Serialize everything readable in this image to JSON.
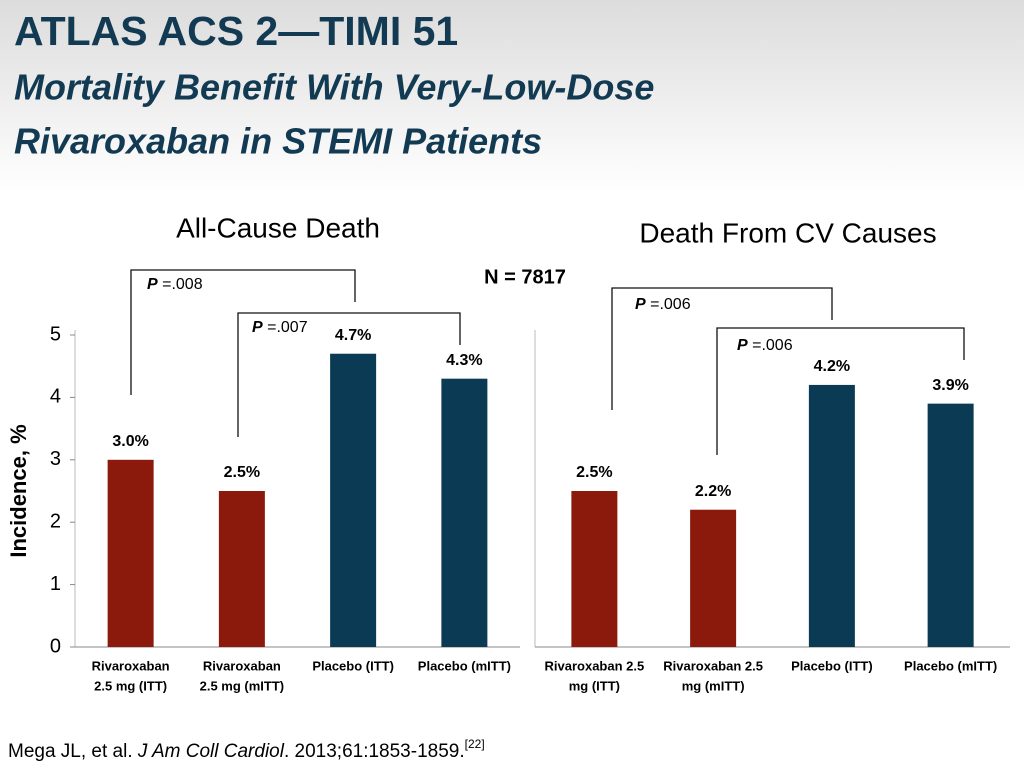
{
  "header": {
    "title": "ATLAS ACS 2—TIMI 51",
    "subtitle": [
      "Mortality Benefit With Very-Low-Dose",
      "Rivaroxaban in STEMI Patients"
    ]
  },
  "annotation": "N = 7817",
  "chart_data": [
    {
      "type": "bar",
      "title": "All-Cause Death",
      "ylabel": "Incidence, %",
      "categories": [
        [
          "Rivaroxaban",
          "2.5 mg (ITT)"
        ],
        [
          "Rivaroxaban",
          "2.5 mg (mITT)"
        ],
        [
          "Placebo (ITT)"
        ],
        [
          "Placebo (mITT)"
        ]
      ],
      "values": [
        3.0,
        2.5,
        4.7,
        4.3
      ],
      "value_labels": [
        "3.0%",
        "2.5%",
        "4.7%",
        "4.3%"
      ],
      "colors": [
        "#8c1a0c",
        "#8c1a0c",
        "#0b3a55",
        "#0b3a55"
      ],
      "ylim": [
        0,
        5
      ],
      "yticks": [
        0,
        1,
        2,
        3,
        4,
        5
      ],
      "brackets": [
        {
          "italic": "P",
          "text": " =.008"
        },
        {
          "italic": "P",
          "text": " =.007"
        }
      ]
    },
    {
      "type": "bar",
      "title": "Death From CV Causes",
      "categories": [
        [
          "Rivaroxaban 2.5",
          "mg (ITT)"
        ],
        [
          "Rivaroxaban 2.5",
          "mg (mITT)"
        ],
        [
          "Placebo (ITT)"
        ],
        [
          "Placebo (mITT)"
        ]
      ],
      "values": [
        2.5,
        2.2,
        4.2,
        3.9
      ],
      "value_labels": [
        "2.5%",
        "2.2%",
        "4.2%",
        "3.9%"
      ],
      "colors": [
        "#8c1a0c",
        "#8c1a0c",
        "#0b3a55",
        "#0b3a55"
      ],
      "ylim": [
        0,
        5
      ],
      "brackets": [
        {
          "italic": "P",
          "text": " =.006"
        },
        {
          "italic": "P",
          "text": " =.006"
        }
      ]
    }
  ],
  "footer": {
    "authors": "Mega JL, et al. ",
    "journal": "J Am Coll Cardiol",
    "rest": ". 2013;61:1853-1859.",
    "ref": "[22]"
  }
}
